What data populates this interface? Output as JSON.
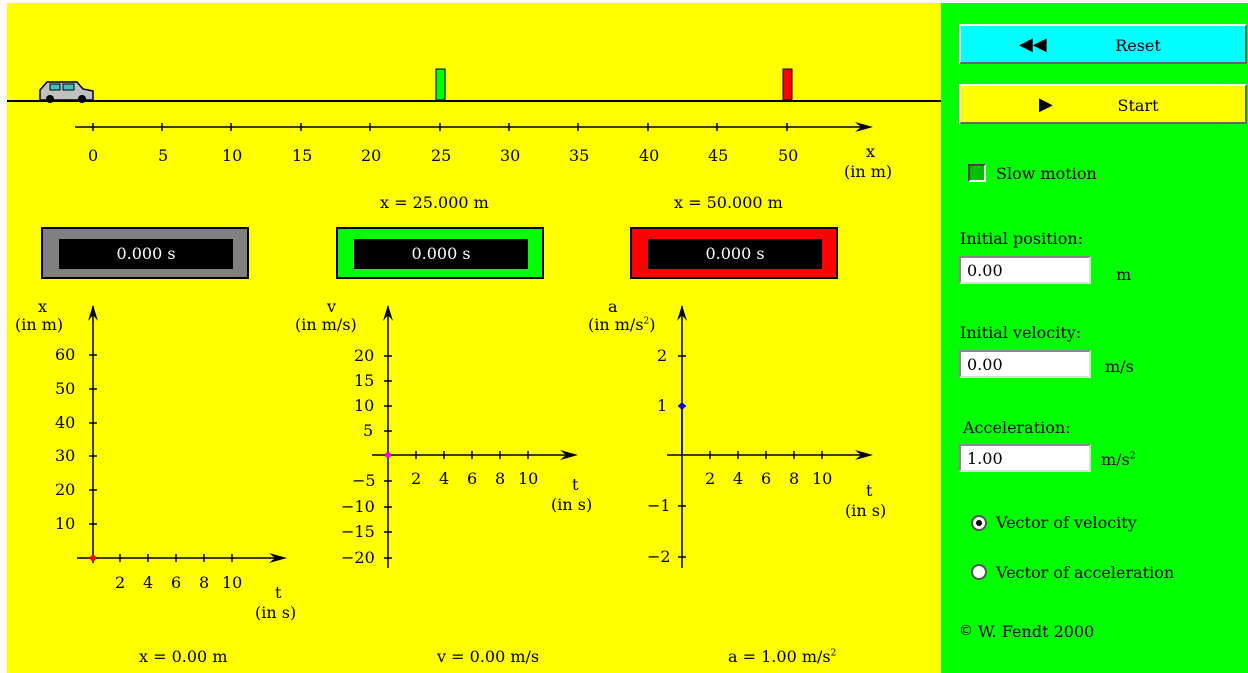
{
  "colors": {
    "sim_bg": "#ffff00",
    "panel_bg": "#00ff00",
    "reset_btn": "#00ffff",
    "start_btn": "#ffff00",
    "clock_gray": "#808080",
    "clock_green": "#00ff00",
    "clock_red": "#ff0000"
  },
  "road": {
    "axis_ticks": [
      "0",
      "5",
      "10",
      "15",
      "20",
      "25",
      "30",
      "35",
      "40",
      "45",
      "50"
    ],
    "axis_label_line1": "x",
    "axis_label_line2": "(in m)"
  },
  "flags": {
    "green_readout": "x = 25.000 m",
    "red_readout": "x = 50.000 m",
    "green_position": 25,
    "red_position": 50
  },
  "clocks": {
    "main": "0.000 s",
    "green": "0.000 s",
    "red": "0.000 s"
  },
  "graph_x": {
    "ylabel_line1": "x",
    "ylabel_line2": "(in m)",
    "yticks": [
      "60",
      "50",
      "40",
      "30",
      "20",
      "10"
    ],
    "xticks": [
      "2",
      "4",
      "6",
      "8",
      "10"
    ],
    "xlabel_line1": "t",
    "xlabel_line2": "(in s)",
    "readout": "x = 0.00 m"
  },
  "graph_v": {
    "ylabel_line1": "v",
    "ylabel_line2": "(in m/s)",
    "yticks": [
      "20",
      "15",
      "10",
      "5",
      "−5",
      "−10",
      "−15",
      "−20"
    ],
    "xticks": [
      "2",
      "4",
      "6",
      "8",
      "10"
    ],
    "xlabel_line1": "t",
    "xlabel_line2": "(in s)",
    "readout": "v = 0.00 m/s"
  },
  "graph_a": {
    "ylabel_line1": "a",
    "ylabel_line2": "(in m/s",
    "ylabel_sup": "2",
    "ylabel_close": ")",
    "yticks": [
      "2",
      "1",
      "−1",
      "−2"
    ],
    "xticks": [
      "2",
      "4",
      "6",
      "8",
      "10"
    ],
    "xlabel_line1": "t",
    "xlabel_line2": "(in s)",
    "readout": "a = 1.00 m/s",
    "readout_sup": "2"
  },
  "panel": {
    "reset_icon": "rewind-icon",
    "reset_label": "Reset",
    "start_icon": "play-icon",
    "start_label": "Start",
    "slow_motion_label": "Slow motion",
    "slow_motion_checked": false,
    "initial_position_label": "Initial position:",
    "initial_position_value": "0.00",
    "initial_position_unit": "m",
    "initial_velocity_label": "Initial velocity:",
    "initial_velocity_value": "0.00",
    "initial_velocity_unit": "m/s",
    "acceleration_label": "Acceleration:",
    "acceleration_value": "1.00",
    "acceleration_unit": "m/s",
    "acceleration_unit_sup": "2",
    "vector_velocity_label": "Vector of  velocity",
    "vector_velocity_selected": true,
    "vector_acceleration_label": "Vector of  acceleration",
    "vector_acceleration_selected": false,
    "copyright": "W. Fendt 2000"
  }
}
